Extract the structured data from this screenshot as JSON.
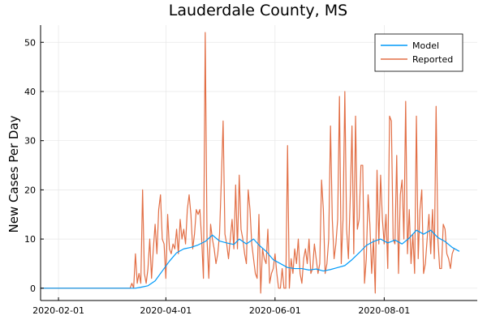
{
  "chart_data": {
    "type": "line",
    "title": "Lauderdale County, MS",
    "xlabel": "",
    "ylabel": "New Cases Per Day",
    "x_ticks": [
      "2020-02-01",
      "2020-04-01",
      "2020-06-01",
      "2020-08-01"
    ],
    "y_ticks": [
      0,
      10,
      20,
      30,
      40,
      50
    ],
    "xlim": [
      "2020-01-22",
      "2020-09-22"
    ],
    "ylim": [
      -2.5,
      53.5
    ],
    "grid": true,
    "legend": {
      "position": "top-right"
    },
    "series": [
      {
        "name": "Model",
        "color": "#009af9",
        "points": [
          [
            "2020-01-22",
            0
          ],
          [
            "2020-03-15",
            0
          ],
          [
            "2020-03-18",
            0.2
          ],
          [
            "2020-03-22",
            0.5
          ],
          [
            "2020-03-26",
            1.5
          ],
          [
            "2020-03-30",
            3.5
          ],
          [
            "2020-04-03",
            5.5
          ],
          [
            "2020-04-07",
            7.2
          ],
          [
            "2020-04-11",
            8.0
          ],
          [
            "2020-04-15",
            8.3
          ],
          [
            "2020-04-19",
            8.8
          ],
          [
            "2020-04-23",
            9.5
          ],
          [
            "2020-04-27",
            10.8
          ],
          [
            "2020-05-01",
            9.6
          ],
          [
            "2020-05-05",
            9.2
          ],
          [
            "2020-05-09",
            8.9
          ],
          [
            "2020-05-12",
            10.0
          ],
          [
            "2020-05-16",
            9.0
          ],
          [
            "2020-05-20",
            10.0
          ],
          [
            "2020-05-23",
            8.8
          ],
          [
            "2020-05-27",
            7.5
          ],
          [
            "2020-05-31",
            5.8
          ],
          [
            "2020-06-04",
            5.0
          ],
          [
            "2020-06-08",
            4.2
          ],
          [
            "2020-06-12",
            4.0
          ],
          [
            "2020-06-16",
            4.0
          ],
          [
            "2020-06-20",
            3.7
          ],
          [
            "2020-06-24",
            3.9
          ],
          [
            "2020-06-28",
            3.5
          ],
          [
            "2020-07-02",
            3.8
          ],
          [
            "2020-07-06",
            4.2
          ],
          [
            "2020-07-10",
            4.6
          ],
          [
            "2020-07-14",
            5.8
          ],
          [
            "2020-07-18",
            7.2
          ],
          [
            "2020-07-22",
            8.7
          ],
          [
            "2020-07-26",
            9.5
          ],
          [
            "2020-07-30",
            10.0
          ],
          [
            "2020-08-03",
            9.2
          ],
          [
            "2020-08-07",
            9.8
          ],
          [
            "2020-08-11",
            9.0
          ],
          [
            "2020-08-15",
            10.2
          ],
          [
            "2020-08-19",
            11.8
          ],
          [
            "2020-08-23",
            11.0
          ],
          [
            "2020-08-27",
            11.8
          ],
          [
            "2020-08-31",
            10.3
          ],
          [
            "2020-09-04",
            9.5
          ],
          [
            "2020-09-08",
            8.3
          ],
          [
            "2020-09-12",
            7.5
          ]
        ]
      },
      {
        "name": "Reported",
        "color": "#e26f46",
        "start": "2020-03-11",
        "prefix": [
          [
            "2020-01-22",
            0
          ],
          [
            "2020-03-11",
            0
          ]
        ],
        "daily": [
          0,
          0,
          1,
          0,
          7,
          1,
          3,
          1,
          20,
          3,
          1,
          4,
          10,
          2,
          8,
          13,
          7,
          16,
          19,
          10,
          9,
          2,
          15,
          8,
          7,
          9,
          8,
          12,
          7,
          14,
          10,
          12,
          9,
          16,
          19,
          15,
          8,
          11,
          16,
          15,
          16,
          10,
          2,
          52,
          10,
          2,
          13,
          10,
          8,
          5,
          7,
          11,
          22,
          34,
          11,
          9,
          6,
          10,
          14,
          8,
          21,
          8,
          23,
          12,
          10,
          7,
          5,
          20,
          16,
          9,
          6,
          3,
          2,
          15,
          -1,
          8,
          6,
          5,
          12,
          1,
          3,
          4,
          7,
          3,
          0,
          0,
          4,
          0,
          0,
          29,
          0,
          6,
          3,
          8,
          5,
          10,
          3,
          1,
          6,
          8,
          5,
          10,
          3,
          4,
          9,
          6,
          3,
          5,
          22,
          16,
          3,
          5,
          10,
          33,
          14,
          6,
          9,
          14,
          39,
          5,
          14,
          40,
          12,
          6,
          18,
          33,
          7,
          35,
          12,
          14,
          25,
          25,
          1,
          6,
          19,
          13,
          3,
          10,
          -1,
          24,
          9,
          23,
          14,
          9,
          15,
          4,
          35,
          34,
          10,
          9,
          27,
          3,
          19,
          22,
          10,
          38,
          7,
          16,
          5,
          11,
          3,
          35,
          6,
          16,
          20,
          3,
          5,
          10,
          15,
          7,
          16,
          6,
          37,
          10,
          4,
          4,
          13,
          12,
          7,
          6,
          4,
          7,
          8
        ]
      }
    ]
  }
}
